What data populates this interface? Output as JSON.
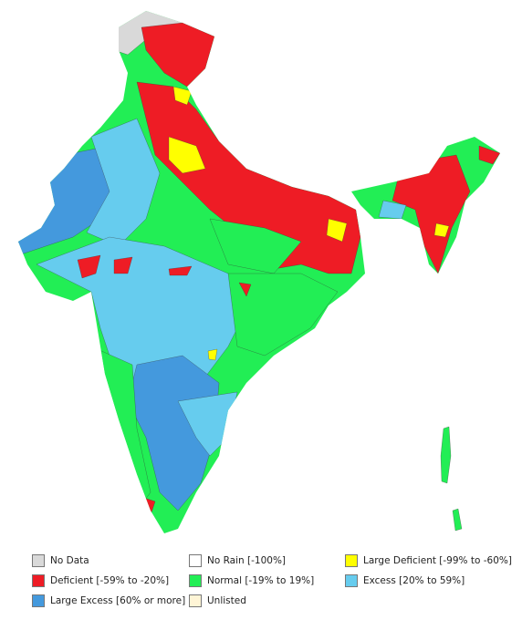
{
  "legend": [
    {
      "label": "No Data",
      "color": "#d9d9d9"
    },
    {
      "label": "No Rain [-100%]",
      "color": "#ffffff"
    },
    {
      "label": "Large Deficient [-99% to -60%]",
      "color": "#ffff00"
    },
    {
      "label": "Deficient [-59% to -20%]",
      "color": "#ee1c25"
    },
    {
      "label": "Normal [-19% to 19%]",
      "color": "#22ee55"
    },
    {
      "label": "Excess [20% to 59%]",
      "color": "#66ccee"
    },
    {
      "label": "Large Excess [60% or more]",
      "color": "#4499dd"
    },
    {
      "label": "Unlisted",
      "color": "#fff5d6"
    }
  ]
}
